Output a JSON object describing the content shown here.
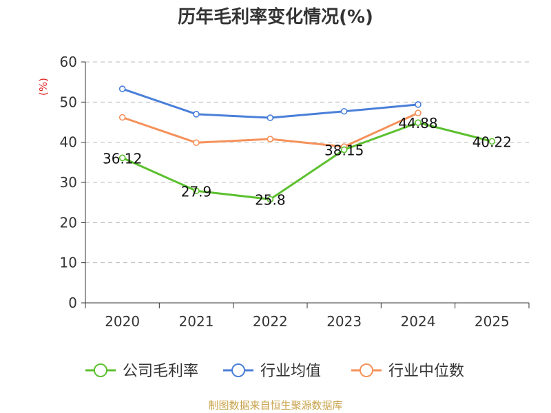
{
  "chart_data": {
    "type": "line",
    "title": "历年毛利率变化情况(%)",
    "ylabel": "(%)",
    "xlabel": "",
    "ylim": [
      0,
      60
    ],
    "yticks": [
      0,
      10,
      20,
      30,
      40,
      50,
      60
    ],
    "categories": [
      "2020",
      "2021",
      "2022",
      "2023",
      "2024",
      "2025"
    ],
    "grid": true,
    "legend_position": "bottom",
    "series": [
      {
        "name": "公司毛利率",
        "color": "#5cc02f",
        "values": [
          36.12,
          27.9,
          25.8,
          38.15,
          44.88,
          40.22
        ],
        "labels": [
          "36.12",
          "27.9",
          "25.8",
          "38.15",
          "44.88",
          "40.22"
        ],
        "show_labels": true
      },
      {
        "name": "行业均值",
        "color": "#4a7fd9",
        "values": [
          53.3,
          47.0,
          46.1,
          47.7,
          49.4,
          null
        ],
        "show_labels": false
      },
      {
        "name": "行业中位数",
        "color": "#f5915a",
        "values": [
          46.2,
          39.9,
          40.8,
          38.9,
          47.3,
          null
        ],
        "show_labels": false
      }
    ]
  },
  "footer": "制图数据来自恒生聚源数据库"
}
